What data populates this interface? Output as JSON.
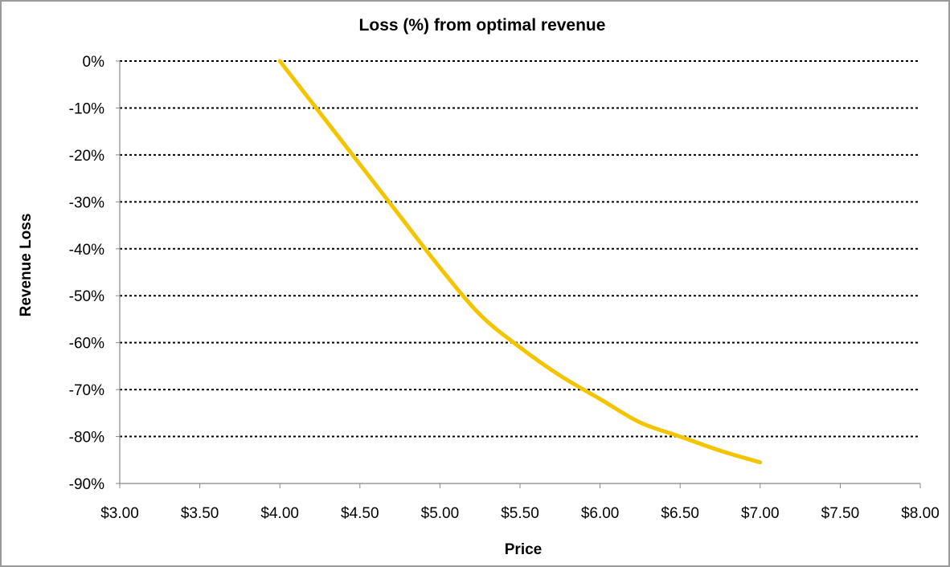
{
  "chart_data": {
    "type": "line",
    "title": "Loss (%) from optimal revenue",
    "xlabel": "Price",
    "ylabel": "Revenue Loss",
    "xlim": [
      3.0,
      8.0
    ],
    "ylim": [
      -90,
      0
    ],
    "x_ticks": [
      "$3.00",
      "$3.50",
      "$4.00",
      "$4.50",
      "$5.00",
      "$5.50",
      "$6.00",
      "$6.50",
      "$7.00",
      "$7.50",
      "$8.00"
    ],
    "y_ticks": [
      "0%",
      "-10%",
      "-20%",
      "-30%",
      "-40%",
      "-50%",
      "-60%",
      "-70%",
      "-80%",
      "-90%"
    ],
    "grid": "horizontal dotted",
    "legend": "none",
    "series": [
      {
        "color": "#f2c500",
        "x": [
          4.0,
          4.25,
          4.5,
          4.75,
          5.0,
          5.25,
          5.5,
          5.75,
          6.0,
          6.25,
          6.5,
          6.75,
          7.0
        ],
        "y": [
          0,
          -11,
          -22,
          -33,
          -44,
          -54,
          -61,
          -67,
          -72,
          -77,
          -80,
          -83,
          -85.5
        ]
      }
    ]
  }
}
